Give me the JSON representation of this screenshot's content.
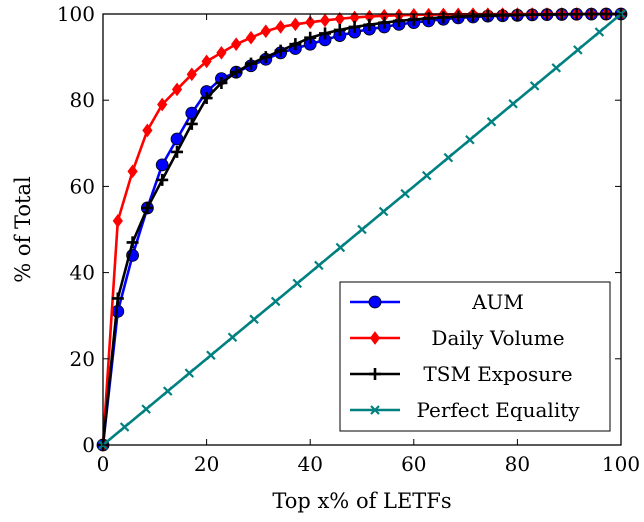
{
  "chart_data": {
    "type": "line",
    "title": "",
    "xlabel": "Top x% of LETFs",
    "ylabel": "% of Total",
    "xlim": [
      0,
      100
    ],
    "ylim": [
      0,
      100
    ],
    "xticks": [
      "0",
      "20",
      "40",
      "60",
      "80",
      "100"
    ],
    "yticks": [
      "0",
      "20",
      "40",
      "60",
      "80",
      "100"
    ],
    "grid": false,
    "legend_position": "bottom-right",
    "series": [
      {
        "name": "AUM",
        "color": "#0000ff",
        "marker": "circle",
        "x": [
          0,
          2.86,
          5.71,
          8.57,
          11.43,
          14.29,
          17.14,
          20,
          22.86,
          25.71,
          28.57,
          31.43,
          34.29,
          37.14,
          40,
          42.86,
          45.71,
          48.57,
          51.43,
          54.29,
          57.14,
          60,
          62.86,
          65.71,
          68.57,
          71.43,
          74.29,
          77.14,
          80,
          82.86,
          85.71,
          88.57,
          91.43,
          94.29,
          97.14,
          100
        ],
        "y": [
          0,
          31,
          44,
          55,
          65,
          71,
          77,
          82,
          85,
          86.5,
          88,
          89.5,
          91,
          92,
          93,
          94,
          95,
          95.8,
          96.5,
          97,
          97.6,
          98,
          98.4,
          98.8,
          99.1,
          99.3,
          99.5,
          99.6,
          99.7,
          99.8,
          99.85,
          99.9,
          99.95,
          99.97,
          99.99,
          100
        ]
      },
      {
        "name": "Daily Volume",
        "color": "#ff0000",
        "marker": "diamond",
        "x": [
          0,
          2.86,
          5.71,
          8.57,
          11.43,
          14.29,
          17.14,
          20,
          22.86,
          25.71,
          28.57,
          31.43,
          34.29,
          37.14,
          40,
          42.86,
          45.71,
          48.57,
          51.43,
          54.29,
          57.14,
          60,
          62.86,
          65.71,
          68.57,
          71.43,
          74.29,
          77.14,
          80,
          82.86,
          85.71,
          88.57,
          91.43,
          94.29,
          97.14,
          100
        ],
        "y": [
          0,
          52,
          63.5,
          73,
          79,
          82.5,
          86,
          89,
          91,
          93,
          94.5,
          96,
          97,
          97.6,
          98.1,
          98.5,
          98.9,
          99.2,
          99.4,
          99.6,
          99.7,
          99.8,
          99.85,
          99.9,
          99.92,
          99.95,
          99.96,
          99.97,
          99.98,
          99.99,
          99.99,
          100,
          100,
          100,
          100,
          100
        ]
      },
      {
        "name": "TSM Exposure",
        "color": "#000000",
        "marker": "plus",
        "x": [
          0,
          2.86,
          5.71,
          8.57,
          11.43,
          14.29,
          17.14,
          20,
          22.86,
          25.71,
          28.57,
          31.43,
          34.29,
          37.14,
          40,
          42.86,
          45.71,
          48.57,
          51.43,
          54.29,
          57.14,
          60,
          62.86,
          65.71,
          68.57,
          71.43,
          74.29,
          77.14,
          80,
          82.86,
          85.71,
          88.57,
          91.43,
          94.29,
          97.14,
          100
        ],
        "y": [
          0,
          34,
          47,
          55,
          61.5,
          68,
          74.5,
          80.5,
          84,
          86.5,
          88.5,
          90,
          91.5,
          93,
          94.5,
          95.5,
          96.3,
          97,
          97.5,
          98,
          98.4,
          98.7,
          99,
          99.2,
          99.4,
          99.5,
          99.6,
          99.7,
          99.8,
          99.85,
          99.9,
          99.93,
          99.96,
          99.98,
          99.99,
          100
        ]
      },
      {
        "name": "Perfect Equality",
        "color": "#008080",
        "marker": "x",
        "x": [
          0,
          4.17,
          8.33,
          12.5,
          16.67,
          20.83,
          25,
          29.17,
          33.33,
          37.5,
          41.67,
          45.83,
          50,
          54.17,
          58.33,
          62.5,
          66.67,
          70.83,
          75,
          79.17,
          83.33,
          87.5,
          91.67,
          95.83,
          100
        ],
        "y": [
          0,
          4.17,
          8.33,
          12.5,
          16.67,
          20.83,
          25,
          29.17,
          33.33,
          37.5,
          41.67,
          45.83,
          50,
          54.17,
          58.33,
          62.5,
          66.67,
          70.83,
          75,
          79.17,
          83.33,
          87.5,
          91.67,
          95.83,
          100
        ]
      }
    ]
  }
}
